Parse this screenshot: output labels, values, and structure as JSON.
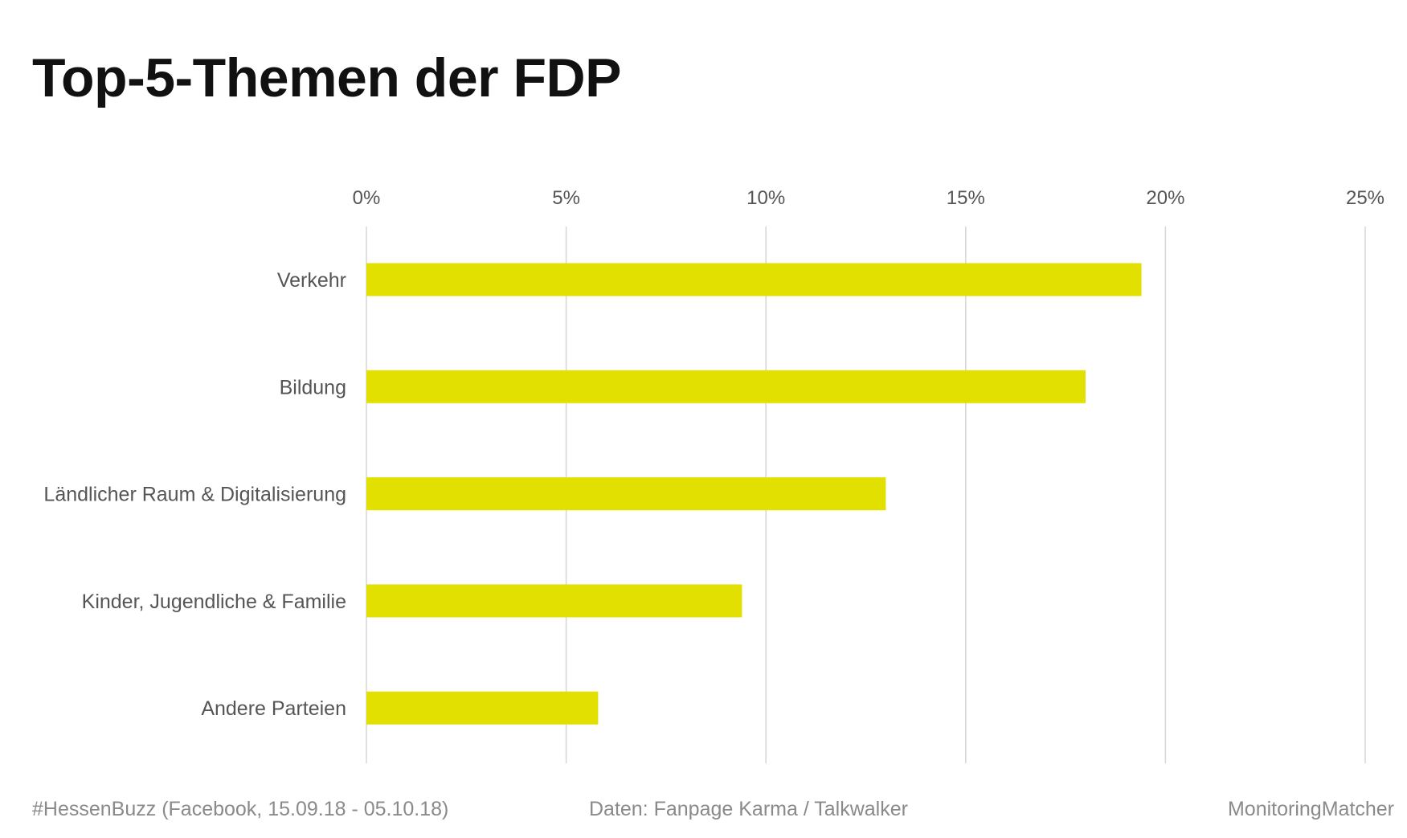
{
  "title": "Top-5-Themen der FDP",
  "footer": {
    "left": "#HessenBuzz (Facebook, 15.09.18 - 05.10.18)",
    "center": "Daten: Fanpage Karma / Talkwalker",
    "right": "MonitoringMatcher"
  },
  "colors": {
    "bar": "#e2e000",
    "grid": "#d6d6d6",
    "tick_label": "#555555",
    "category_label": "#555555",
    "title": "#111111",
    "footer": "#8a8a8a"
  },
  "chart_data": {
    "type": "bar",
    "orientation": "horizontal",
    "categories": [
      "Verkehr",
      "Bildung",
      "Ländlicher Raum & Digitalisierung",
      "Kinder, Jugendliche & Familie",
      "Andere Parteien"
    ],
    "values": [
      19.4,
      18.0,
      13.0,
      9.4,
      5.8
    ],
    "unit": "%",
    "xlim": [
      0,
      25
    ],
    "x_ticks": [
      0,
      5,
      10,
      15,
      20,
      25
    ],
    "x_tick_labels": [
      "0%",
      "5%",
      "10%",
      "15%",
      "20%",
      "25%"
    ],
    "x_axis_position": "top",
    "grid": true,
    "legend": "none"
  }
}
